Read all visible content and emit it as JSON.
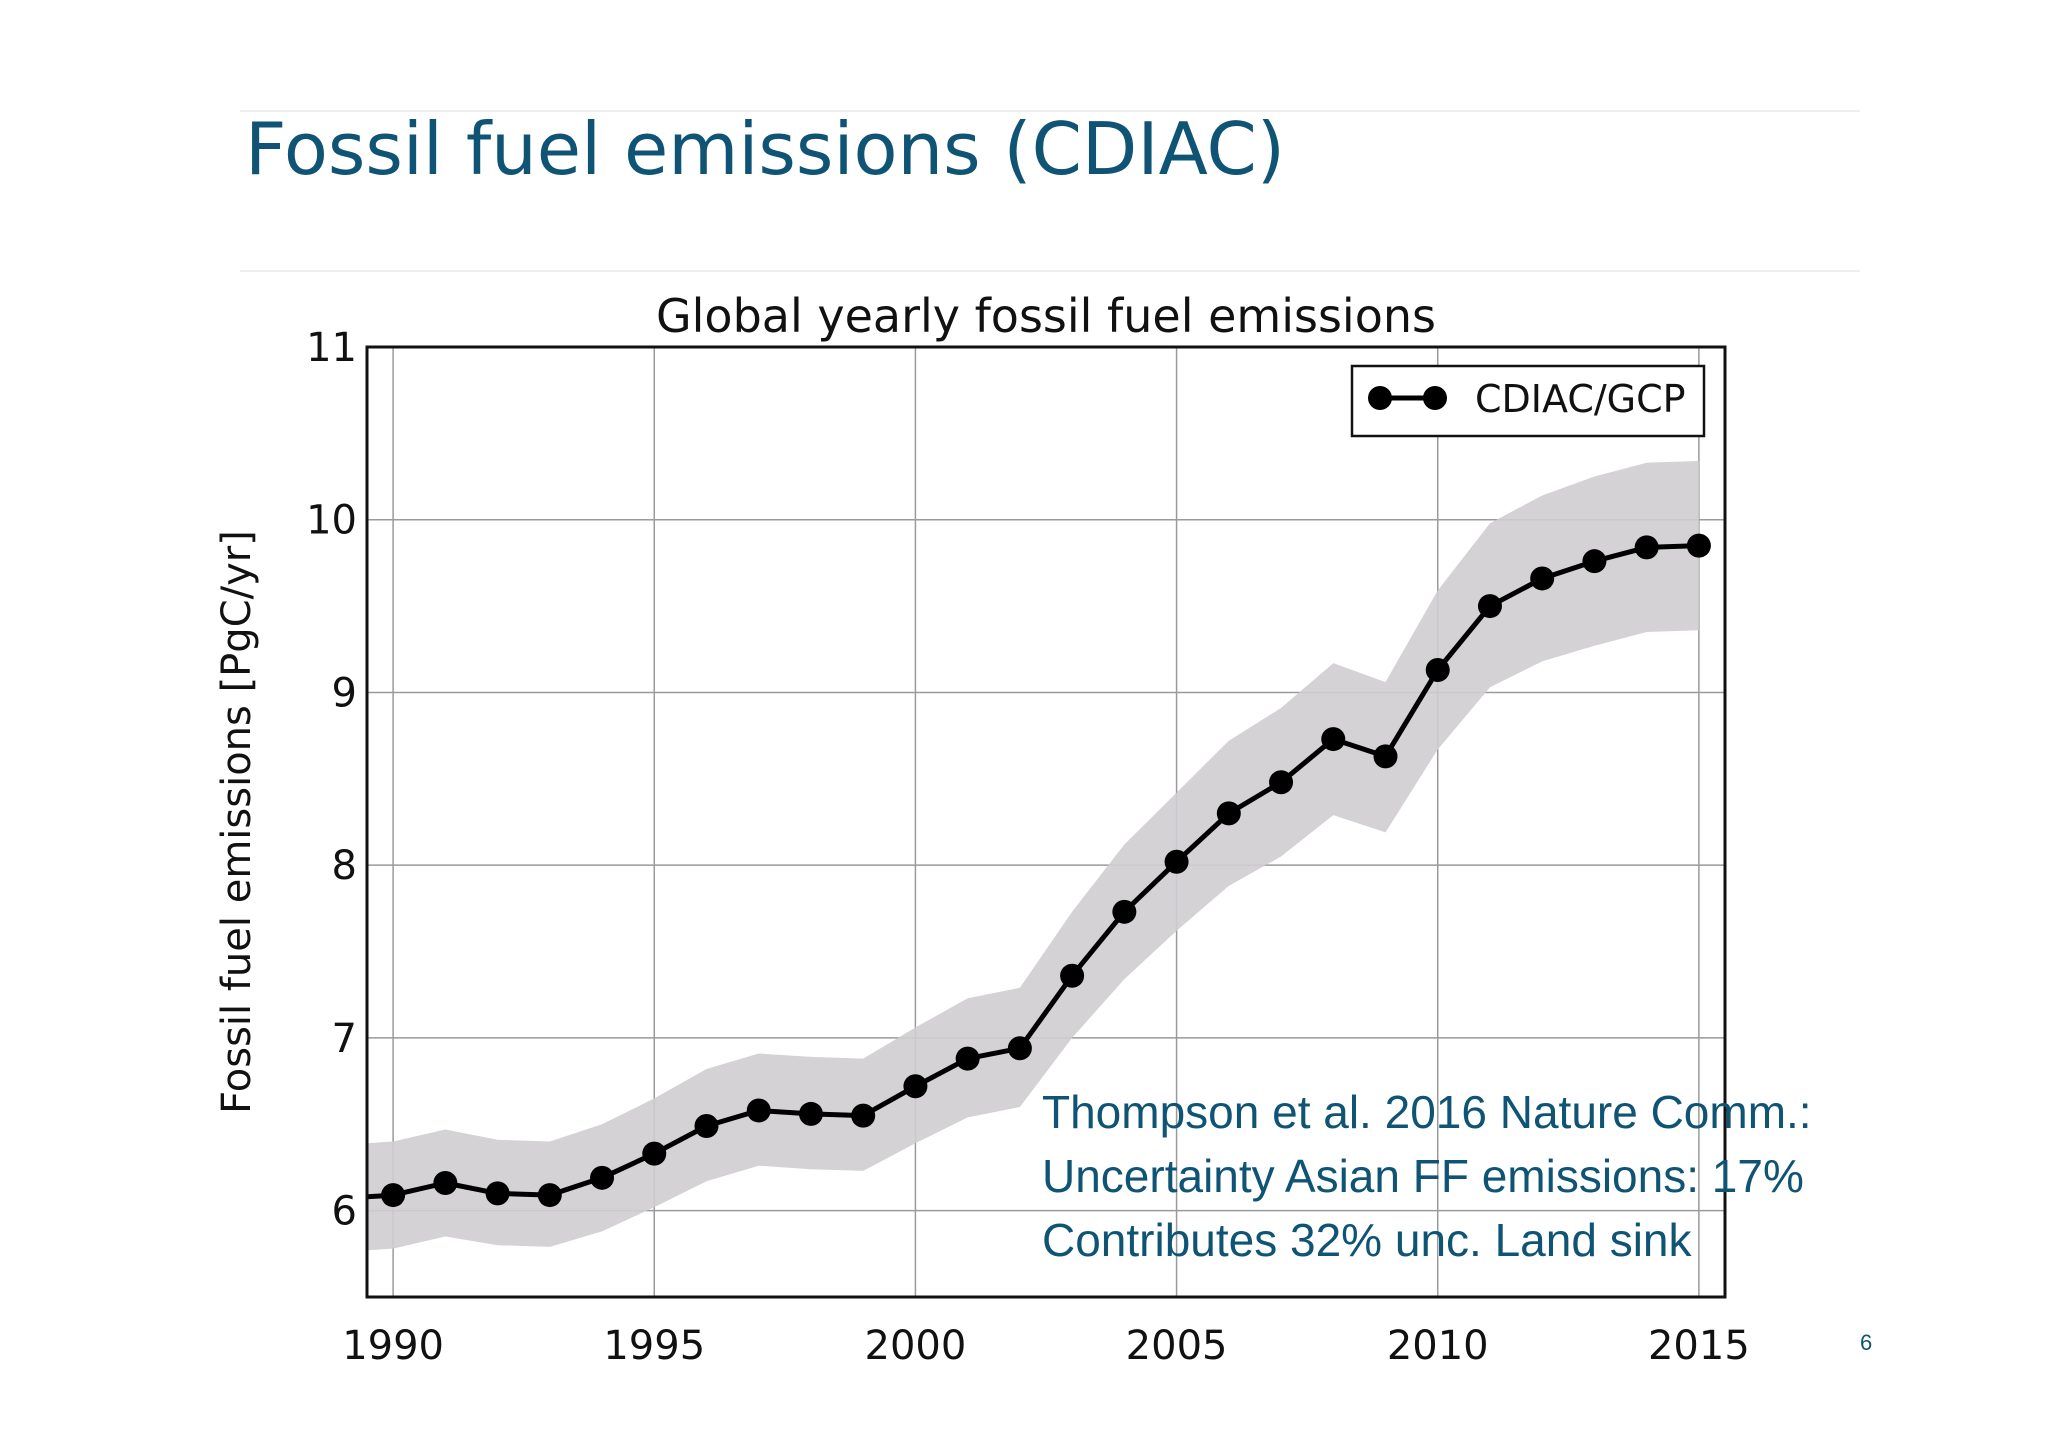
{
  "slide": {
    "title": "Fossil fuel emissions (CDIAC)",
    "page_number": "6"
  },
  "annotation": {
    "lines": [
      "Thompson et al. 2016 Nature Comm.:",
      "Uncertainty Asian FF emissions: 17%",
      "Contributes 32% unc. Land sink"
    ]
  },
  "colors": {
    "title": "#0f5474",
    "line": "#000000",
    "band": "#cfcdd0"
  },
  "chart_data": {
    "type": "line",
    "title": "Global yearly fossil fuel emissions",
    "ylabel": "Fossil fuel emissions [PgC/yr]",
    "xlabel": "",
    "xlim": [
      1989.5,
      2015.5
    ],
    "ylim": [
      5.5,
      11
    ],
    "xticks": [
      1990,
      1995,
      2000,
      2005,
      2010,
      2015
    ],
    "yticks": [
      6,
      7,
      8,
      9,
      10,
      11
    ],
    "grid": true,
    "legend_position": "top-right",
    "series": [
      {
        "name": "CDIAC/GCP",
        "x": [
          1989,
          1990,
          1991,
          1992,
          1993,
          1994,
          1995,
          1996,
          1997,
          1998,
          1999,
          2000,
          2001,
          2002,
          2003,
          2004,
          2005,
          2006,
          2007,
          2008,
          2009,
          2010,
          2011,
          2012,
          2013,
          2014,
          2015
        ],
        "y": [
          6.07,
          6.09,
          6.16,
          6.1,
          6.09,
          6.19,
          6.33,
          6.49,
          6.58,
          6.56,
          6.55,
          6.72,
          6.88,
          6.94,
          7.36,
          7.73,
          8.02,
          8.3,
          8.48,
          8.73,
          8.63,
          9.13,
          9.5,
          9.66,
          9.76,
          9.84,
          9.85
        ],
        "lower": [
          5.76,
          5.78,
          5.85,
          5.8,
          5.79,
          5.88,
          6.02,
          6.17,
          6.26,
          6.24,
          6.23,
          6.39,
          6.54,
          6.6,
          7.0,
          7.34,
          7.62,
          7.88,
          8.05,
          8.29,
          8.19,
          8.67,
          9.03,
          9.18,
          9.27,
          9.35,
          9.36
        ],
        "upper": [
          6.38,
          6.4,
          6.47,
          6.41,
          6.4,
          6.5,
          6.65,
          6.82,
          6.91,
          6.89,
          6.88,
          7.06,
          7.23,
          7.29,
          7.73,
          8.12,
          8.42,
          8.72,
          8.91,
          9.17,
          9.06,
          9.59,
          9.98,
          10.14,
          10.25,
          10.33,
          10.34
        ]
      }
    ]
  }
}
